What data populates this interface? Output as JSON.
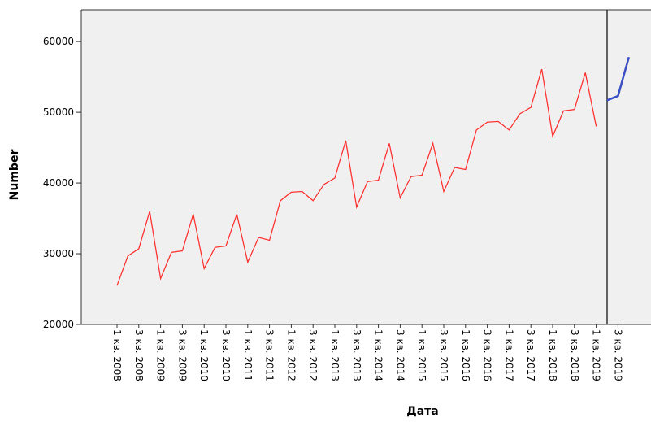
{
  "chart_data": {
    "type": "line",
    "x_label": "Дата",
    "y_label": "Number",
    "categories": [
      "1 кв. 2008",
      null,
      "3 кв. 2008",
      null,
      "1 кв. 2009",
      null,
      "3 кв. 2009",
      null,
      "1 кв. 2010",
      null,
      "3 кв. 2010",
      null,
      "1 кв. 2011",
      null,
      "3 кв. 2011",
      null,
      "1 кв. 2012",
      null,
      "3 кв. 2012",
      null,
      "1 кв. 2013",
      null,
      "3 кв. 2013",
      null,
      "1 кв. 2014",
      null,
      "3 кв. 2014",
      null,
      "1 кв. 2015",
      null,
      "3 кв. 2015",
      null,
      "1 кв. 2016",
      null,
      "3 кв. 2016",
      null,
      "1 кв. 2017",
      null,
      "3 кв. 2017",
      null,
      "1 кв. 2018",
      null,
      "3 кв. 2018",
      null,
      "1 кв. 2019",
      null,
      "3 кв. 2019",
      null
    ],
    "series": [
      {
        "color": "#ff3333",
        "values": [
          25500,
          29700,
          30700,
          36000,
          26500,
          30200,
          30400,
          35600,
          27900,
          30900,
          31100,
          35600,
          28800,
          32300,
          31900,
          37500,
          38700,
          38800,
          37500,
          39800,
          40700,
          46000,
          36600,
          40200,
          40400,
          45600,
          37900,
          40900,
          41100,
          45600,
          38800,
          42200,
          41900,
          47500,
          48600,
          48700,
          47500,
          49800,
          50700,
          56100,
          46600,
          50200,
          50400,
          55600,
          48000,
          null,
          null,
          null
        ]
      },
      {
        "color": "#3b4fc4",
        "values": [
          null,
          null,
          null,
          null,
          null,
          null,
          null,
          null,
          null,
          null,
          null,
          null,
          null,
          null,
          null,
          null,
          null,
          null,
          null,
          null,
          null,
          null,
          null,
          null,
          null,
          null,
          null,
          null,
          null,
          null,
          null,
          null,
          null,
          null,
          null,
          null,
          null,
          null,
          null,
          null,
          null,
          null,
          null,
          null,
          null,
          51700,
          52300,
          57800
        ]
      }
    ],
    "ylim": [
      20000,
      64500
    ],
    "yticks": [
      20000,
      30000,
      40000,
      50000,
      60000
    ]
  }
}
